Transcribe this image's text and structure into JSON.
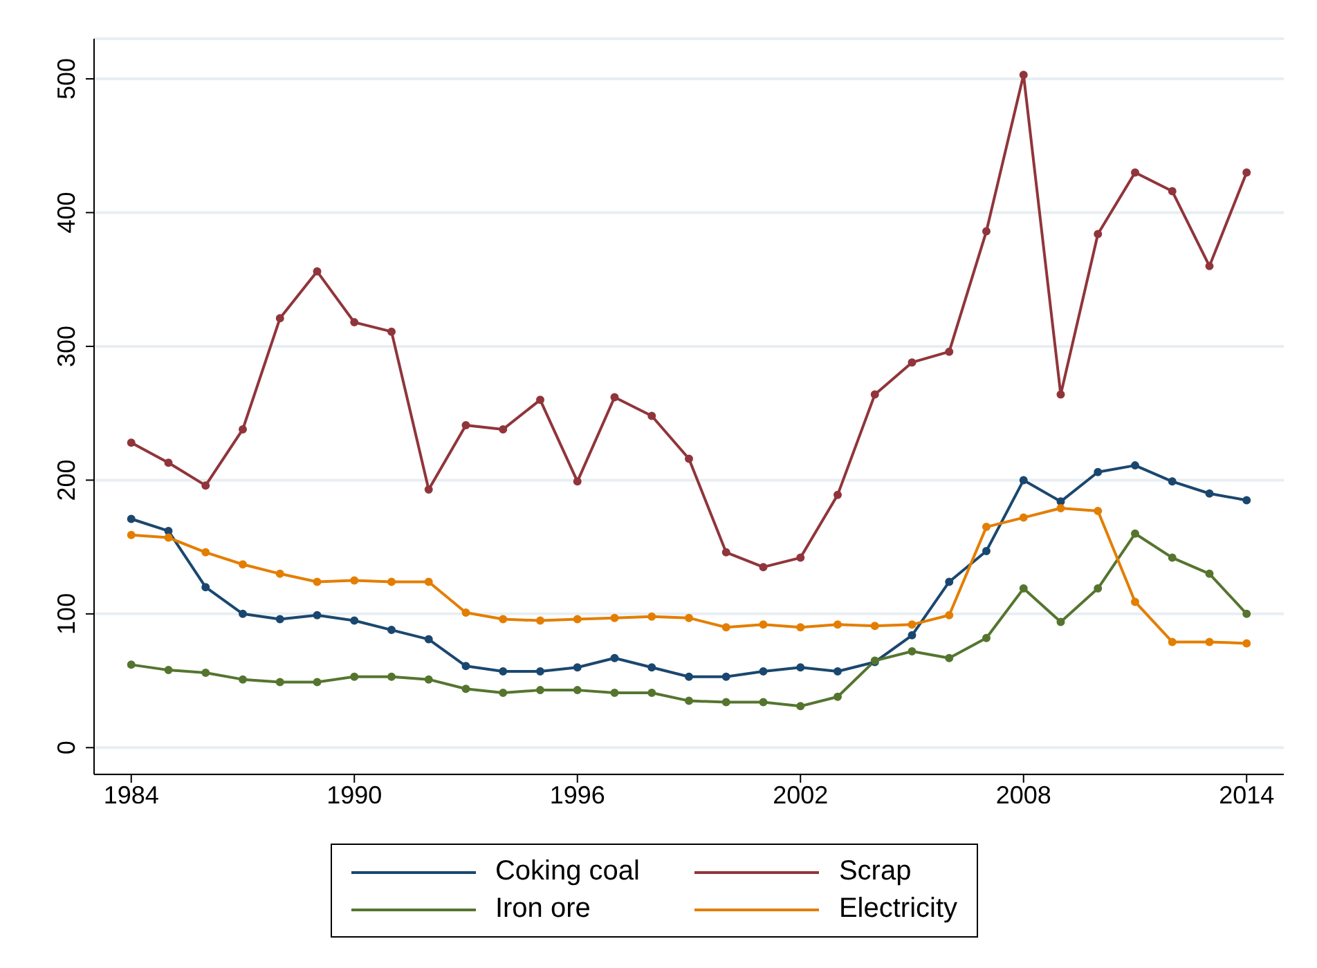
{
  "chart_data": {
    "type": "line",
    "x": [
      1984,
      1985,
      1986,
      1987,
      1988,
      1989,
      1990,
      1991,
      1992,
      1993,
      1994,
      1995,
      1996,
      1997,
      1998,
      1999,
      2000,
      2001,
      2002,
      2003,
      2004,
      2005,
      2006,
      2007,
      2008,
      2009,
      2010,
      2011,
      2012,
      2013,
      2014
    ],
    "series": [
      {
        "name": "Coking coal",
        "color": "#1a476f",
        "values": [
          171,
          162,
          120,
          100,
          96,
          99,
          95,
          88,
          81,
          61,
          57,
          57,
          60,
          67,
          60,
          53,
          53,
          57,
          60,
          57,
          64,
          84,
          124,
          147,
          200,
          184,
          206,
          211,
          199,
          190,
          185
        ]
      },
      {
        "name": "Scrap",
        "color": "#90353b",
        "values": [
          228,
          213,
          196,
          238,
          321,
          356,
          318,
          311,
          193,
          241,
          238,
          260,
          199,
          262,
          248,
          216,
          146,
          135,
          142,
          189,
          264,
          288,
          296,
          386,
          503,
          264,
          384,
          430,
          416,
          360,
          430
        ]
      },
      {
        "name": "Iron ore",
        "color": "#55752f",
        "values": [
          62,
          58,
          56,
          51,
          49,
          49,
          53,
          53,
          51,
          44,
          41,
          43,
          43,
          41,
          41,
          35,
          34,
          34,
          31,
          38,
          65,
          72,
          67,
          82,
          119,
          94,
          119,
          160,
          142,
          130,
          100
        ]
      },
      {
        "name": "Electricity",
        "color": "#e37e00",
        "values": [
          159,
          157,
          146,
          137,
          130,
          124,
          125,
          124,
          124,
          101,
          96,
          95,
          96,
          97,
          98,
          97,
          90,
          92,
          90,
          92,
          91,
          92,
          99,
          165,
          172,
          179,
          177,
          109,
          79,
          79,
          78
        ]
      }
    ],
    "xlim": [
      1983,
      2015
    ],
    "xticks": [
      1984,
      1990,
      1996,
      2002,
      2008,
      2014
    ],
    "ylim": [
      -20,
      530
    ],
    "yticks": [
      0,
      100,
      200,
      300,
      400,
      500
    ],
    "grid": "y",
    "legend": "bottom",
    "marker": "circle",
    "line_style": "solid"
  }
}
